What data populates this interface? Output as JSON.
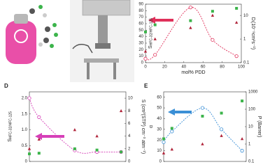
{
  "chart_data": [
    {
      "type": "line",
      "x": [
        0,
        10,
        47,
        70,
        95
      ],
      "xlim": [
        0,
        100
      ],
      "xticks": [
        0,
        20,
        40,
        60,
        80,
        100
      ],
      "xlabel": "mol% PDD",
      "ylabel": {
        "main": "S",
        "sub": "HFC-32/HFC-125"
      },
      "y2label": {
        "main": "D",
        "sub": "i",
        "rest": "(10⁻⁹cm²s⁻¹)"
      },
      "ylim": [
        0,
        90
      ],
      "yticks": [
        0,
        10,
        20,
        30,
        40,
        50,
        60,
        70,
        80,
        90
      ],
      "y2lim": [
        0.1,
        30
      ],
      "y2ticks": [
        0.1,
        1,
        10
      ],
      "y2log": true,
      "series": [
        {
          "color": "#e0305a",
          "marker": "circle",
          "curve": true,
          "values": [
            6,
            12,
            85,
            35,
            10
          ]
        },
        {
          "color": "#3cb44b",
          "marker": "square",
          "axis": "y2",
          "values": [
            2,
            4,
            6,
            15,
            20
          ]
        },
        {
          "color": "#b0243a",
          "marker": "triangle",
          "axis": "y2",
          "values": [
            0.3,
            1,
            3,
            10,
            5
          ]
        }
      ]
    },
    {
      "type": "line",
      "panel": "D",
      "x": [
        0,
        10,
        47,
        70,
        95
      ],
      "xlim": [
        0,
        100
      ],
      "ylabel": {
        "main": "S",
        "sub": "HFC-32/HFC-125"
      },
      "y2label": {
        "main": "S",
        "rest": " (cm³(STP) cm⁻³ atm⁻¹)"
      },
      "ylim": [
        0,
        2.2
      ],
      "yticks": [
        0,
        0.5,
        {
          "value": 1,
          "label": "1.0"
        },
        1.5,
        {
          "value": 2,
          "label": "2.0"
        }
      ],
      "y2lim": [
        0,
        11
      ],
      "y2ticks": [
        0,
        2,
        4,
        6,
        8,
        10
      ],
      "series": [
        {
          "color": "#d63fb8",
          "marker": "circle",
          "curve": true,
          "values": [
            2.0,
            1.4,
            0.35,
            0.3,
            0.3
          ]
        },
        {
          "color": "#3cb44b",
          "marker": "square",
          "axis": "y2",
          "values": [
            1.2,
            1.3,
            2,
            1.8,
            1.5
          ]
        },
        {
          "color": "#b0243a",
          "marker": "triangle",
          "axis": "y2",
          "values": [
            2,
            3.5,
            5,
            4,
            8
          ]
        }
      ]
    },
    {
      "type": "line",
      "panel": "E",
      "x": [
        0,
        10,
        47,
        70,
        95
      ],
      "xlim": [
        0,
        100
      ],
      "ylabel": {
        "main": "α"
      },
      "y2label": {
        "main": "P",
        "rest": " (Barrer)"
      },
      "ylim": [
        0,
        65
      ],
      "yticks": [
        0,
        10,
        20,
        30,
        40,
        50,
        60
      ],
      "y2lim": [
        0.1,
        1000
      ],
      "y2ticks": [
        0.1,
        1,
        10,
        100,
        1000
      ],
      "y2log": true,
      "series": [
        {
          "color": "#3a8fd6",
          "marker": "circle",
          "curve": true,
          "values": [
            18,
            28,
            50,
            30,
            10
          ]
        },
        {
          "color": "#3cb44b",
          "marker": "square",
          "axis": "y2",
          "values": [
            2,
            8,
            40,
            60,
            300
          ]
        },
        {
          "color": "#b0243a",
          "marker": "triangle",
          "axis": "y2",
          "values": [
            0.3,
            0.5,
            1,
            3,
            2
          ]
        }
      ]
    }
  ]
}
